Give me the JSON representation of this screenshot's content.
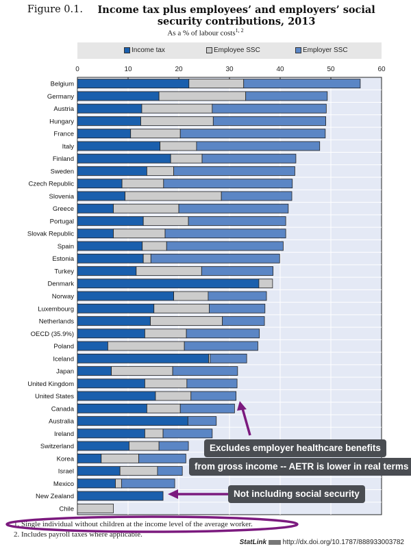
{
  "chart_data": {
    "type": "bar",
    "orientation": "horizontal-stacked",
    "title_prefix": "Figure 0.1.",
    "title": "Income tax plus employees’ and employers’ social security contributions, 2013",
    "subtitle": "As a % of labour costs",
    "subtitle_sup": "1, 2",
    "xlim": [
      0,
      60
    ],
    "xticks": [
      "0",
      "10",
      "20",
      "30",
      "40",
      "50",
      "60"
    ],
    "legend_position": "top",
    "categories": [
      "Belgium",
      "Germany",
      "Austria",
      "Hungary",
      "France",
      "Italy",
      "Finland",
      "Sweden",
      "Czech Republic",
      "Slovenia",
      "Greece",
      "Portugal",
      "Slovak Republic",
      "Spain",
      "Estonia",
      "Turkey",
      "Denmark",
      "Norway",
      "Luxembourg",
      "Netherlands",
      "OECD (35.9%)",
      "Poland",
      "Iceland",
      "Japan",
      "United Kingdom",
      "United States",
      "Canada",
      "Australia",
      "Ireland",
      "Switzerland",
      "Korea",
      "Israel",
      "Mexico",
      "New Zealand",
      "Chile"
    ],
    "series": [
      {
        "name": "Income tax",
        "color": "#1a5fad",
        "values": [
          22.0,
          16.1,
          12.7,
          12.5,
          10.5,
          16.3,
          18.4,
          13.7,
          8.8,
          9.4,
          7.1,
          13.0,
          7.1,
          12.8,
          13.0,
          11.6,
          35.8,
          19.0,
          15.1,
          14.4,
          13.3,
          6.0,
          25.9,
          6.7,
          13.3,
          15.4,
          13.7,
          21.8,
          13.3,
          10.2,
          4.7,
          8.4,
          7.5,
          16.9,
          0
        ]
      },
      {
        "name": "Employee SSC",
        "color": "#cccccc",
        "values": [
          10.8,
          17.1,
          13.9,
          14.3,
          9.8,
          7.2,
          6.2,
          5.3,
          8.2,
          19.0,
          12.9,
          8.9,
          10.2,
          4.8,
          1.5,
          12.9,
          2.7,
          6.8,
          10.9,
          14.2,
          8.2,
          15.1,
          0.3,
          12.1,
          8.3,
          7.0,
          6.6,
          0,
          3.6,
          5.9,
          7.4,
          7.4,
          1.2,
          0,
          7.1
        ]
      },
      {
        "name": "Employer SSC",
        "color": "#5b86c5",
        "values": [
          23.0,
          16.1,
          22.5,
          22.2,
          28.6,
          24.3,
          18.5,
          23.9,
          25.4,
          13.9,
          21.6,
          19.2,
          23.8,
          23.0,
          25.4,
          14.1,
          0,
          11.5,
          11.0,
          8.3,
          14.4,
          14.5,
          7.2,
          12.8,
          9.9,
          8.9,
          10.7,
          5.6,
          9.7,
          5.8,
          9.3,
          4.9,
          10.5,
          0,
          0
        ]
      }
    ]
  },
  "annotations": {
    "healthcare_line1": "Excludes employer healthcare benefits",
    "healthcare_line2": "from gross income -- AETR is lower in real terms",
    "new_zealand": "Not including social security",
    "highlight_color": "#7b1a7e"
  },
  "footnotes": [
    "1.  Single individual without children at the income level of the average worker.",
    "2.  Includes payroll taxes where applicable."
  ],
  "statlink": {
    "label": "StatLink",
    "url": "http://dx.doi.org/10.1787/888933003782"
  }
}
